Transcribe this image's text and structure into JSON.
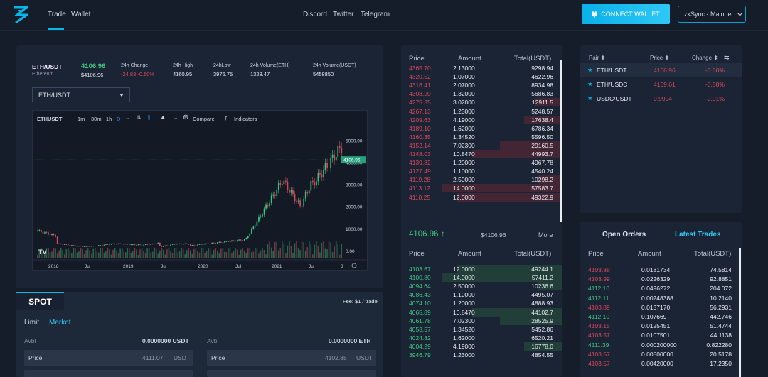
{
  "nav": {
    "trade": "Trade",
    "wallet": "Wallet",
    "discord": "Discord",
    "twitter": "Twitter",
    "telegram": "Telegram",
    "connect": "CONNECT WALLET",
    "network": "zkSync - Mainnet",
    "accent": "#09b6e8"
  },
  "ticker": {
    "pair": "ETH/USDT",
    "name": "Ethereum",
    "price": "4106.96",
    "price_sub": "$4106.96",
    "change_label": "24h Change",
    "change_val": "-24.83 -0.60%",
    "high_label": "24h High",
    "high_val": "4160.95",
    "low_label": "24hLow",
    "low_val": "3976.75",
    "vol_eth_label": "24h Volume(ETH)",
    "vol_eth_val": "1328.47",
    "vol_usdt_label": "24h Volume(USDT)",
    "vol_usdt_val": "5458850"
  },
  "pair_select": "ETH/USDT",
  "chart_toolbar": {
    "symbol": "ETHUSDT",
    "m1": "1m",
    "m30": "30m",
    "h1": "1h",
    "d": "D",
    "compare": "Compare",
    "indicators": "Indicators"
  },
  "chart_data": {
    "type": "candlestick",
    "y_ticks": [
      "5000.00",
      "4000.00",
      "3000.00",
      "2000.00",
      "1000.00",
      "0.00"
    ],
    "x_ticks": [
      "2018",
      "Jul",
      "2019",
      "Jul",
      "2020",
      "Jul",
      "2021",
      "Jul",
      "8"
    ],
    "last_price_label": "4106.96",
    "ylim": [
      0,
      5300
    ]
  },
  "orderbook": {
    "headers": {
      "price": "Price",
      "amount": "Amount",
      "total": "Total(USDT)"
    },
    "asks": [
      [
        "4365.70",
        "2.13000",
        "9298.94",
        0.0
      ],
      [
        "4320.52",
        "1.07000",
        "4622.96",
        0.0
      ],
      [
        "4316.41",
        "2.07000",
        "8934.98",
        0.0
      ],
      [
        "4308.20",
        "1.32000",
        "5686.83",
        0.0
      ],
      [
        "4275.35",
        "3.02000",
        "12911.5",
        0.23
      ],
      [
        "4267.13",
        "1.23000",
        "5248.57",
        0.0
      ],
      [
        "4209.63",
        "4.19000",
        "17638.4",
        0.32
      ],
      [
        "4189.10",
        "1.62000",
        "6786.34",
        0.0
      ],
      [
        "4160.35",
        "1.34520",
        "5596.50",
        0.0
      ],
      [
        "4152.14",
        "7.02300",
        "29160.5",
        0.52
      ],
      [
        "4148.03",
        "10.8470",
        "44993.7",
        0.75
      ],
      [
        "4139.82",
        "1.20000",
        "4967.78",
        0.0
      ],
      [
        "4127.49",
        "1.10000",
        "4540.24",
        0.0
      ],
      [
        "4119.28",
        "2.50000",
        "10298.2",
        0.2
      ],
      [
        "4113.12",
        "14.0000",
        "57583.7",
        1.0
      ],
      [
        "4110.25",
        "12.0000",
        "49322.9",
        0.87
      ]
    ],
    "mid_price": "4106.96 ↑",
    "mid_usd": "$4106.96",
    "more": "More",
    "bids": [
      [
        "4103.67",
        "12.0000",
        "49244.1",
        0.87
      ],
      [
        "4100.80",
        "14.0000",
        "57411.2",
        1.0
      ],
      [
        "4094.64",
        "2.50000",
        "10236.6",
        0.2
      ],
      [
        "4086.43",
        "1.10000",
        "4495.07",
        0.0
      ],
      [
        "4074.10",
        "1.20000",
        "4888.93",
        0.0
      ],
      [
        "4065.89",
        "10.8470",
        "44102.7",
        0.75
      ],
      [
        "4061.78",
        "7.02300",
        "28525.9",
        0.52
      ],
      [
        "4053.57",
        "1.34520",
        "5452.86",
        0.0
      ],
      [
        "4024.82",
        "1.62000",
        "6520.21",
        0.0
      ],
      [
        "4004.29",
        "4.19000",
        "16778.0",
        0.32
      ],
      [
        "3946.79",
        "1.23000",
        "4854.55",
        0.0
      ]
    ]
  },
  "spot": {
    "tab": "SPOT",
    "fee": "Fee: $1 / trade",
    "limit": "Limit",
    "market": "Market",
    "avbl": "Avbl",
    "avbl_usdt": "0.0000000 USDT",
    "avbl_eth": "0.0000000 ETH",
    "price_label": "Price",
    "buy_price": "4111.07",
    "buy_unit": "USDT",
    "sell_price": "4102.85",
    "sell_unit": "USDT"
  },
  "pairs": {
    "headers": {
      "pair": "Pair ⬍",
      "price": "Price ⬍",
      "change": "Change ⬍"
    },
    "rows": [
      {
        "pair": "ETH/USDT",
        "price": "4106.96",
        "change": "-0.60%"
      },
      {
        "pair": "ETH/USDC",
        "price": "4109.61",
        "change": "-0.58%"
      },
      {
        "pair": "USDC/USDT",
        "price": "0.9994",
        "change": "-0.01%"
      }
    ]
  },
  "trades": {
    "tab_open": "Open Orders",
    "tab_latest": "Latest Trades",
    "headers": {
      "price": "Price",
      "amount": "Amount",
      "total": "Total(USDT)"
    },
    "rows": [
      [
        "4103.88",
        "0.0181734",
        "74.5814",
        "red"
      ],
      [
        "4103.99",
        "0.0226329",
        "92.8851",
        "red"
      ],
      [
        "4112.10",
        "0.0496272",
        "204.072",
        "green"
      ],
      [
        "4112.11",
        "0.00248388",
        "10.2140",
        "green"
      ],
      [
        "4103.89",
        "0.0137170",
        "56.2931",
        "red"
      ],
      [
        "4112.10",
        "0.107669",
        "442.746",
        "green"
      ],
      [
        "4103.15",
        "0.0125451",
        "51.4744",
        "red"
      ],
      [
        "4103.57",
        "0.0107501",
        "44.1138",
        "red"
      ],
      [
        "4111.39",
        "0.000200000",
        "0.822280",
        "green"
      ],
      [
        "4103.57",
        "0.00500000",
        "20.5178",
        "red"
      ],
      [
        "4103.57",
        "0.00420000",
        "17.2350",
        "red"
      ]
    ]
  }
}
